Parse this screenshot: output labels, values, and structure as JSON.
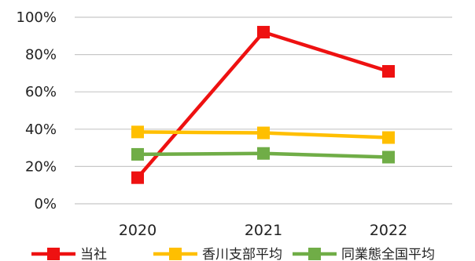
{
  "chart_data": {
    "type": "line",
    "categories": [
      "2020",
      "2021",
      "2022"
    ],
    "ylim": [
      0,
      100
    ],
    "yticks": [
      "0%",
      "20%",
      "40%",
      "60%",
      "80%",
      "100%"
    ],
    "grid": true,
    "legend_position": "bottom",
    "series": [
      {
        "name": "当社",
        "color": "#ee1111",
        "values": [
          14,
          92,
          71
        ]
      },
      {
        "name": "香川支部平均",
        "color": "#ffbf00",
        "values": [
          38.5,
          38,
          35.5
        ]
      },
      {
        "name": "同業態全国平均",
        "color": "#70ad47",
        "values": [
          26.5,
          27,
          25
        ]
      }
    ]
  }
}
